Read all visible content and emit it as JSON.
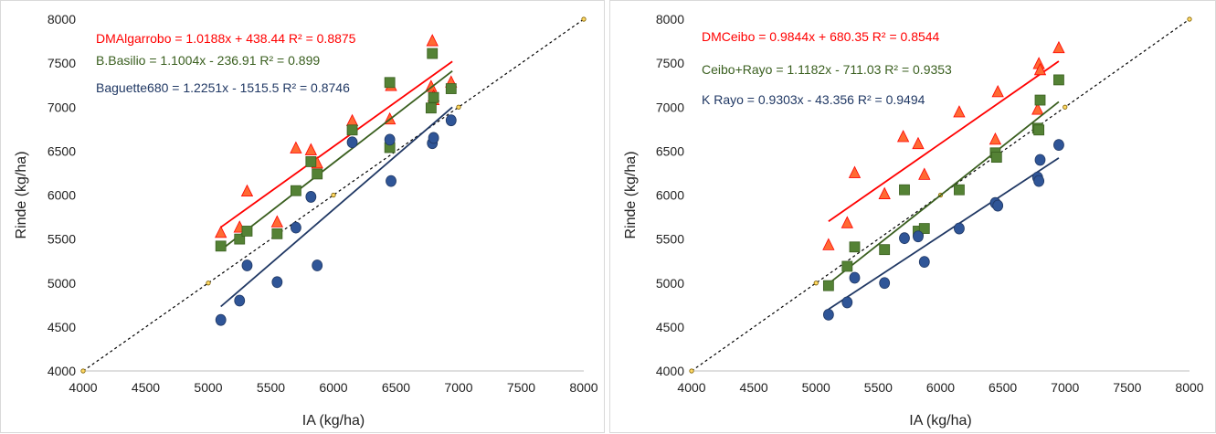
{
  "chart_data": [
    {
      "type": "scatter",
      "xlabel": "IA (kg/ha)",
      "ylabel": "Rinde (kg/ha)",
      "xlim": [
        4000,
        8000
      ],
      "ylim": [
        4000,
        8000
      ],
      "xticks": [
        "4000",
        "4500",
        "5000",
        "5500",
        "6000",
        "6500",
        "7000",
        "7500",
        "8000"
      ],
      "yticks": [
        "4000",
        "4500",
        "5000",
        "5500",
        "6000",
        "6500",
        "7000",
        "7500",
        "8000"
      ],
      "grid": false,
      "reference_line": {
        "x": [
          4000,
          5000,
          6000,
          7000,
          8000
        ],
        "y": [
          4000,
          5000,
          6000,
          7000,
          8000
        ]
      },
      "series": [
        {
          "marker": "triangle",
          "color": "#ff0000",
          "fill": "#ff6a33",
          "equation": "DMAlgarrobo = 1.0188x + 438.44 R² = 0.8875",
          "trend": {
            "slope": 1.0188,
            "intercept": 438.44,
            "x_range": [
              5100,
              6950
            ]
          },
          "x": [
            5100,
            5250,
            5310,
            5550,
            5700,
            5820,
            5870,
            6150,
            6450,
            6460,
            6780,
            6790,
            6800,
            6800,
            6940
          ],
          "y": [
            5570,
            5630,
            6040,
            5690,
            6530,
            6510,
            6360,
            6840,
            6860,
            7240,
            7230,
            7750,
            7120,
            7080,
            7280
          ]
        },
        {
          "marker": "square",
          "color": "#3a5f1f",
          "fill": "#548235",
          "equation": "B.Basilio = 1.1004x - 236.91 R² = 0.899",
          "trend": {
            "slope": 1.1004,
            "intercept": -236.91,
            "x_range": [
              5100,
              6950
            ]
          },
          "x": [
            5100,
            5250,
            5310,
            5550,
            5700,
            5820,
            5870,
            6150,
            6450,
            6450,
            6780,
            6790,
            6800,
            6940
          ],
          "y": [
            5420,
            5500,
            5590,
            5560,
            6050,
            6380,
            6240,
            6740,
            6540,
            7280,
            6990,
            7610,
            7110,
            7210
          ]
        },
        {
          "marker": "circle",
          "color": "#203864",
          "fill": "#2f5597",
          "equation": "Baguette680 = 1.2251x - 1515.5 R² = 0.8746",
          "trend": {
            "slope": 1.2251,
            "intercept": -1515.5,
            "x_range": [
              5100,
              6950
            ]
          },
          "x": [
            5100,
            5250,
            5310,
            5550,
            5700,
            5820,
            5870,
            6150,
            6450,
            6460,
            6790,
            6800,
            6940
          ],
          "y": [
            4580,
            4800,
            5200,
            5010,
            5630,
            5980,
            5200,
            6600,
            6630,
            6160,
            6590,
            6650,
            6850
          ]
        }
      ]
    },
    {
      "type": "scatter",
      "xlabel": "IA (kg/ha)",
      "ylabel": "Rinde (kg/ha)",
      "xlim": [
        4000,
        8000
      ],
      "ylim": [
        4000,
        8000
      ],
      "xticks": [
        "4000",
        "4500",
        "5000",
        "5500",
        "6000",
        "6500",
        "7000",
        "7500",
        "8000"
      ],
      "yticks": [
        "4000",
        "4500",
        "5000",
        "5500",
        "6000",
        "6500",
        "7000",
        "7500",
        "8000"
      ],
      "grid": false,
      "reference_line": {
        "x": [
          4000,
          5000,
          6000,
          7000,
          8000
        ],
        "y": [
          4000,
          5000,
          6000,
          7000,
          8000
        ]
      },
      "series": [
        {
          "marker": "triangle",
          "color": "#ff0000",
          "fill": "#ff6a33",
          "equation": "DMCeibo = 0.9844x + 680.35 R² = 0.8544",
          "trend": {
            "slope": 0.9844,
            "intercept": 680.35,
            "x_range": [
              5100,
              6950
            ]
          },
          "x": [
            5100,
            5250,
            5310,
            5550,
            5700,
            5820,
            5870,
            6150,
            6440,
            6460,
            6780,
            6790,
            6800,
            6950
          ],
          "y": [
            5430,
            5680,
            6250,
            6010,
            6660,
            6580,
            6230,
            6940,
            6630,
            7170,
            6970,
            7490,
            7420,
            7670
          ]
        },
        {
          "marker": "square",
          "color": "#3a5f1f",
          "fill": "#548235",
          "equation": "Ceibo+Rayo = 1.1182x - 711.03 R² = 0.9353",
          "trend": {
            "slope": 1.1182,
            "intercept": -711.03,
            "x_range": [
              5100,
              6950
            ]
          },
          "x": [
            5100,
            5250,
            5310,
            5550,
            5710,
            5820,
            5870,
            6150,
            6440,
            6450,
            6780,
            6790,
            6800,
            6950
          ],
          "y": [
            4970,
            5190,
            5410,
            5380,
            6060,
            5590,
            5620,
            6060,
            6480,
            6430,
            6760,
            6740,
            7080,
            7310
          ]
        },
        {
          "marker": "circle",
          "color": "#203864",
          "fill": "#2f5597",
          "equation": "K Rayo = 0.9303x - 43.356 R² = 0.9494",
          "trend": {
            "slope": 0.9303,
            "intercept": -43.356,
            "x_range": [
              5100,
              6950
            ]
          },
          "x": [
            5100,
            5250,
            5310,
            5550,
            5710,
            5820,
            5870,
            6150,
            6440,
            6460,
            6780,
            6790,
            6800,
            6950
          ],
          "y": [
            4640,
            4780,
            5060,
            5000,
            5510,
            5530,
            5240,
            5620,
            5910,
            5880,
            6200,
            6160,
            6400,
            6570
          ]
        }
      ]
    }
  ]
}
